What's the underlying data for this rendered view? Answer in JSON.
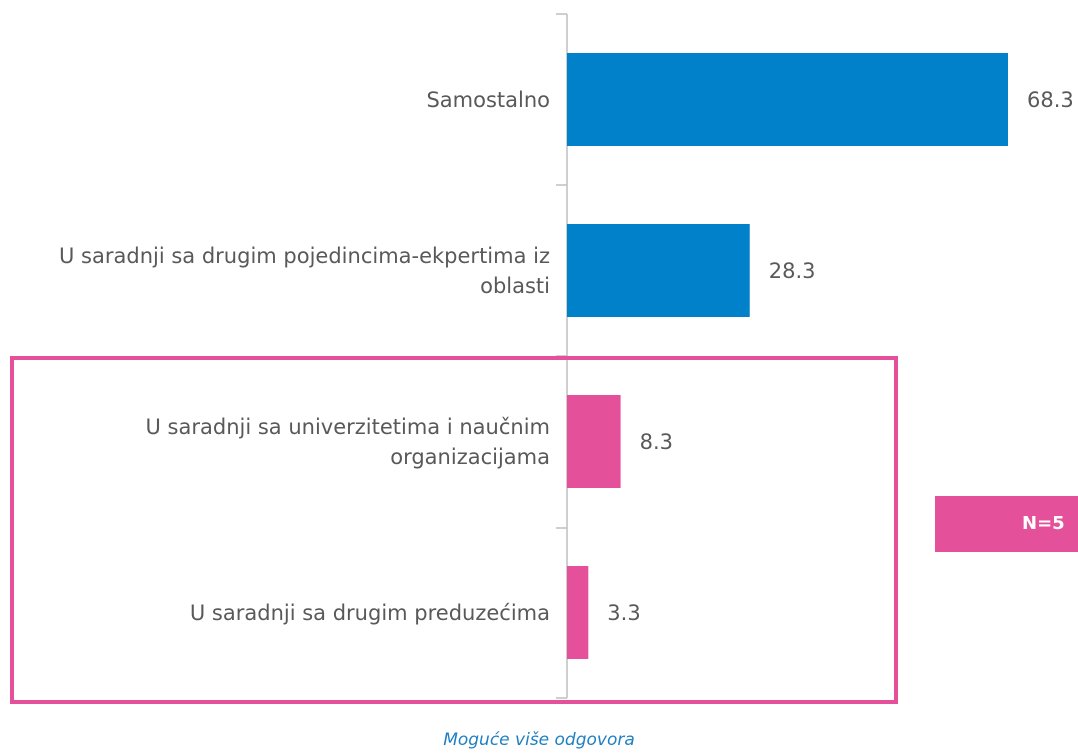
{
  "chart_data": {
    "type": "bar",
    "orientation": "horizontal",
    "categories": [
      "Samostalno",
      "U saradnji sa drugim pojedincima-ekpertima iz oblasti",
      "U saradnji sa univerzitetima i naučnim organizacijama",
      "U saradnji sa drugim preduzećima"
    ],
    "values": [
      68.3,
      28.3,
      8.3,
      3.3
    ],
    "colors": [
      "#0081c9",
      "#0081c9",
      "#e4509a",
      "#e4509a"
    ],
    "annotation": "N=5",
    "note": "Moguće više odgovora"
  }
}
